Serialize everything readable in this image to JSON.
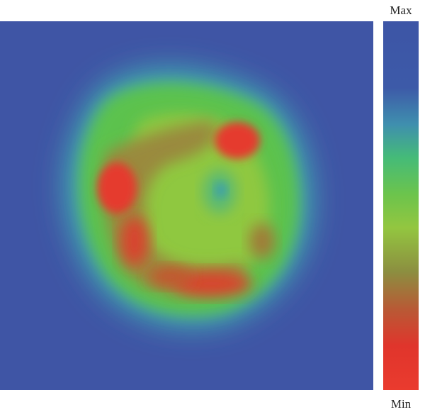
{
  "colorbar": {
    "max_label": "Max",
    "min_label": "Min"
  }
}
